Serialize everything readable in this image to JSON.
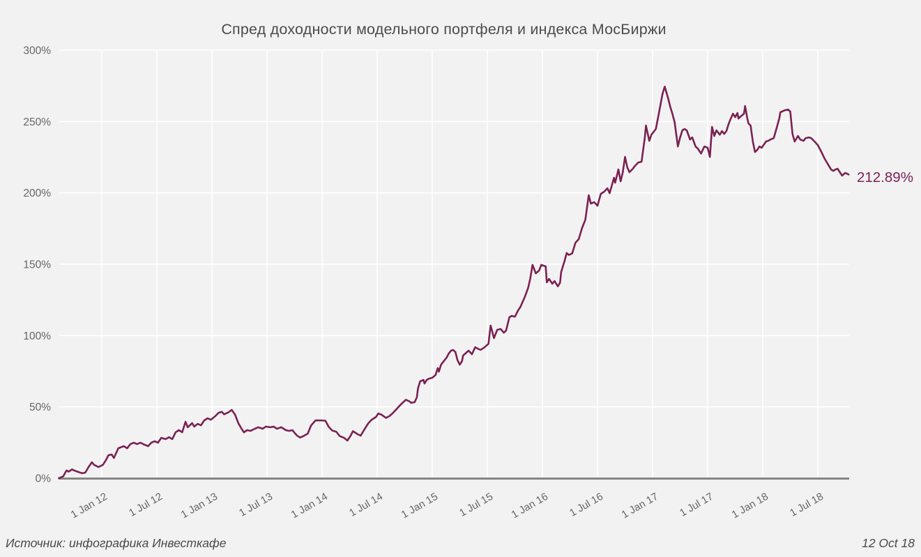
{
  "title": "Спред доходности модельного портфеля и индекса МосБиржи",
  "footer": {
    "source_label": "Источник: инфографика Инвесткафе",
    "date_label": "12 Oct 18"
  },
  "colors": {
    "background": "#f2f2f2",
    "gridline": "#ffffff",
    "axis_line": "#858585",
    "series_line": "#7a2152",
    "end_label": "#7c2253",
    "title_text": "#4c4c4c",
    "tick_text": "#666666",
    "footer_text": "#4a4a4a"
  },
  "chart_data": {
    "type": "line",
    "title": "Спред доходности модельного портфеля и индекса МосБиржи",
    "xlabel": "",
    "ylabel": "",
    "grid": true,
    "legend": "none",
    "x_axis": {
      "unit": "decimal_year",
      "range": [
        2011.61,
        2018.8
      ],
      "label_rotation": -30,
      "ticks": [
        {
          "v": 2012.0,
          "label": "1 Jan 12"
        },
        {
          "v": 2012.5,
          "label": "1 Jul 12"
        },
        {
          "v": 2013.0,
          "label": "1 Jan 13"
        },
        {
          "v": 2013.5,
          "label": "1 Jul 13"
        },
        {
          "v": 2014.0,
          "label": "1 Jan 14"
        },
        {
          "v": 2014.5,
          "label": "1 Jul 14"
        },
        {
          "v": 2015.0,
          "label": "1 Jan 15"
        },
        {
          "v": 2015.5,
          "label": "1 Jul 15"
        },
        {
          "v": 2016.0,
          "label": "1 Jan 16"
        },
        {
          "v": 2016.5,
          "label": "1 Jul 16"
        },
        {
          "v": 2017.0,
          "label": "1 Jan 17"
        },
        {
          "v": 2017.5,
          "label": "1 Jul 17"
        },
        {
          "v": 2018.0,
          "label": "1 Jan 18"
        },
        {
          "v": 2018.5,
          "label": "1 Jul 18"
        }
      ]
    },
    "y_axis": {
      "range": [
        0,
        300
      ],
      "ticks": [
        {
          "v": 0,
          "label": "0%"
        },
        {
          "v": 50,
          "label": "50%"
        },
        {
          "v": 100,
          "label": "100%"
        },
        {
          "v": 150,
          "label": "150%"
        },
        {
          "v": 200,
          "label": "200%"
        },
        {
          "v": 250,
          "label": "250%"
        },
        {
          "v": 300,
          "label": "300%"
        }
      ]
    },
    "series": [
      {
        "name": "Спред доходности",
        "color": "#7a2152",
        "end_label": "212.89%",
        "end_value": 212.89,
        "points": [
          [
            2011.61,
            0
          ],
          [
            2011.65,
            1.3
          ],
          [
            2011.68,
            5.4
          ],
          [
            2011.7,
            4.6
          ],
          [
            2011.73,
            6.2
          ],
          [
            2011.75,
            5.4
          ],
          [
            2011.78,
            4.6
          ],
          [
            2011.82,
            3.5
          ],
          [
            2011.85,
            3.9
          ],
          [
            2011.88,
            7.8
          ],
          [
            2011.91,
            11.2
          ],
          [
            2011.93,
            9.4
          ],
          [
            2011.97,
            7.8
          ],
          [
            2012.01,
            9.4
          ],
          [
            2012.04,
            13
          ],
          [
            2012.06,
            16.1
          ],
          [
            2012.09,
            16.6
          ],
          [
            2012.11,
            14.2
          ],
          [
            2012.15,
            21
          ],
          [
            2012.2,
            22.5
          ],
          [
            2012.23,
            21
          ],
          [
            2012.26,
            23.9
          ],
          [
            2012.29,
            24.9
          ],
          [
            2012.32,
            23.9
          ],
          [
            2012.35,
            24.9
          ],
          [
            2012.39,
            23.4
          ],
          [
            2012.42,
            22.5
          ],
          [
            2012.45,
            24.9
          ],
          [
            2012.48,
            25.9
          ],
          [
            2012.51,
            24.9
          ],
          [
            2012.54,
            28.3
          ],
          [
            2012.58,
            27.4
          ],
          [
            2012.61,
            28.8
          ],
          [
            2012.64,
            27.4
          ],
          [
            2012.67,
            32.2
          ],
          [
            2012.7,
            33.7
          ],
          [
            2012.73,
            32.2
          ],
          [
            2012.76,
            39.6
          ],
          [
            2012.78,
            35.7
          ],
          [
            2012.82,
            38.6
          ],
          [
            2012.84,
            36.2
          ],
          [
            2012.87,
            38.1
          ],
          [
            2012.9,
            37.1
          ],
          [
            2012.93,
            40.5
          ],
          [
            2012.96,
            42
          ],
          [
            2012.99,
            41
          ],
          [
            2013.03,
            43.5
          ],
          [
            2013.06,
            45.9
          ],
          [
            2013.09,
            46.5
          ],
          [
            2013.11,
            44.8
          ],
          [
            2013.15,
            46.2
          ],
          [
            2013.18,
            47.9
          ],
          [
            2013.21,
            44.5
          ],
          [
            2013.24,
            38.5
          ],
          [
            2013.27,
            34.5
          ],
          [
            2013.29,
            32.2
          ],
          [
            2013.32,
            33.7
          ],
          [
            2013.35,
            33.2
          ],
          [
            2013.39,
            34.7
          ],
          [
            2013.42,
            35.7
          ],
          [
            2013.46,
            34.7
          ],
          [
            2013.49,
            36.2
          ],
          [
            2013.53,
            35.7
          ],
          [
            2013.56,
            36.2
          ],
          [
            2013.59,
            34.7
          ],
          [
            2013.63,
            35.7
          ],
          [
            2013.67,
            33.7
          ],
          [
            2013.7,
            33.2
          ],
          [
            2013.73,
            33.7
          ],
          [
            2013.77,
            30
          ],
          [
            2013.8,
            28.5
          ],
          [
            2013.83,
            29.5
          ],
          [
            2013.87,
            31.3
          ],
          [
            2013.9,
            37
          ],
          [
            2013.94,
            40.5
          ],
          [
            2013.99,
            40.5
          ],
          [
            2014.03,
            40.3
          ],
          [
            2014.06,
            36
          ],
          [
            2014.09,
            33.5
          ],
          [
            2014.13,
            32.5
          ],
          [
            2014.16,
            29.5
          ],
          [
            2014.2,
            28.3
          ],
          [
            2014.23,
            26.4
          ],
          [
            2014.26,
            30
          ],
          [
            2014.28,
            33
          ],
          [
            2014.32,
            31
          ],
          [
            2014.35,
            29.8
          ],
          [
            2014.39,
            35
          ],
          [
            2014.42,
            38.6
          ],
          [
            2014.45,
            41
          ],
          [
            2014.49,
            43
          ],
          [
            2014.51,
            45.4
          ],
          [
            2014.54,
            44.5
          ],
          [
            2014.58,
            42.3
          ],
          [
            2014.61,
            43.5
          ],
          [
            2014.64,
            45.5
          ],
          [
            2014.67,
            48
          ],
          [
            2014.7,
            50.5
          ],
          [
            2014.73,
            52.8
          ],
          [
            2014.76,
            55
          ],
          [
            2014.79,
            54
          ],
          [
            2014.81,
            52.8
          ],
          [
            2014.84,
            53.3
          ],
          [
            2014.86,
            56.7
          ],
          [
            2014.87,
            63
          ],
          [
            2014.89,
            67.9
          ],
          [
            2014.92,
            68.9
          ],
          [
            2014.93,
            66.4
          ],
          [
            2014.95,
            68.9
          ],
          [
            2014.97,
            69.8
          ],
          [
            2015.0,
            70.4
          ],
          [
            2015.03,
            72.3
          ],
          [
            2015.05,
            77.2
          ],
          [
            2015.06,
            74.7
          ],
          [
            2015.08,
            79.6
          ],
          [
            2015.11,
            82.6
          ],
          [
            2015.13,
            84.5
          ],
          [
            2015.15,
            87.4
          ],
          [
            2015.17,
            89.4
          ],
          [
            2015.19,
            89.9
          ],
          [
            2015.21,
            88.4
          ],
          [
            2015.23,
            82.6
          ],
          [
            2015.25,
            79.6
          ],
          [
            2015.27,
            82.1
          ],
          [
            2015.28,
            86
          ],
          [
            2015.3,
            87.4
          ],
          [
            2015.33,
            89.4
          ],
          [
            2015.36,
            86.9
          ],
          [
            2015.39,
            91.8
          ],
          [
            2015.42,
            90.5
          ],
          [
            2015.44,
            90
          ],
          [
            2015.47,
            91.5
          ],
          [
            2015.51,
            94.2
          ],
          [
            2015.53,
            107
          ],
          [
            2015.56,
            98.2
          ],
          [
            2015.59,
            104
          ],
          [
            2015.62,
            104.6
          ],
          [
            2015.65,
            102
          ],
          [
            2015.67,
            103.5
          ],
          [
            2015.7,
            112.8
          ],
          [
            2015.72,
            113.8
          ],
          [
            2015.75,
            113.2
          ],
          [
            2015.78,
            117.7
          ],
          [
            2015.8,
            120
          ],
          [
            2015.82,
            123.6
          ],
          [
            2015.84,
            127
          ],
          [
            2015.87,
            133.4
          ],
          [
            2015.89,
            140
          ],
          [
            2015.91,
            149.5
          ],
          [
            2015.94,
            143.6
          ],
          [
            2015.97,
            145.6
          ],
          [
            2015.99,
            149.5
          ],
          [
            2016.03,
            148.5
          ],
          [
            2016.04,
            137.3
          ],
          [
            2016.06,
            139.7
          ],
          [
            2016.09,
            136.3
          ],
          [
            2016.11,
            138.2
          ],
          [
            2016.14,
            134.5
          ],
          [
            2016.16,
            137
          ],
          [
            2016.17,
            144.6
          ],
          [
            2016.2,
            152
          ],
          [
            2016.22,
            157.8
          ],
          [
            2016.24,
            156.5
          ],
          [
            2016.27,
            157.5
          ],
          [
            2016.3,
            165.1
          ],
          [
            2016.33,
            167.6
          ],
          [
            2016.36,
            175.4
          ],
          [
            2016.39,
            181.2
          ],
          [
            2016.42,
            198.3
          ],
          [
            2016.44,
            192.5
          ],
          [
            2016.47,
            193.5
          ],
          [
            2016.5,
            191
          ],
          [
            2016.53,
            199.3
          ],
          [
            2016.56,
            200.8
          ],
          [
            2016.59,
            203.2
          ],
          [
            2016.61,
            199.8
          ],
          [
            2016.65,
            210.6
          ],
          [
            2016.66,
            207.1
          ],
          [
            2016.69,
            216.4
          ],
          [
            2016.71,
            208.1
          ],
          [
            2016.73,
            214.5
          ],
          [
            2016.75,
            225.2
          ],
          [
            2016.77,
            217.9
          ],
          [
            2016.79,
            214.5
          ],
          [
            2016.82,
            216.9
          ],
          [
            2016.84,
            218.9
          ],
          [
            2016.87,
            221.3
          ],
          [
            2016.9,
            221.8
          ],
          [
            2016.93,
            238.9
          ],
          [
            2016.94,
            247.2
          ],
          [
            2016.97,
            236.5
          ],
          [
            2016.99,
            240.8
          ],
          [
            2017.03,
            244.8
          ],
          [
            2017.06,
            257
          ],
          [
            2017.09,
            269.2
          ],
          [
            2017.11,
            274.5
          ],
          [
            2017.14,
            266.7
          ],
          [
            2017.16,
            260.4
          ],
          [
            2017.18,
            255.5
          ],
          [
            2017.2,
            249.6
          ],
          [
            2017.23,
            232.5
          ],
          [
            2017.25,
            238.9
          ],
          [
            2017.27,
            243.8
          ],
          [
            2017.29,
            244.8
          ],
          [
            2017.31,
            243.8
          ],
          [
            2017.34,
            237.4
          ],
          [
            2017.36,
            238.9
          ],
          [
            2017.39,
            232.5
          ],
          [
            2017.41,
            231.1
          ],
          [
            2017.44,
            227.6
          ],
          [
            2017.47,
            232.5
          ],
          [
            2017.5,
            231.6
          ],
          [
            2017.52,
            225.2
          ],
          [
            2017.54,
            246.2
          ],
          [
            2017.56,
            239.9
          ],
          [
            2017.58,
            243.8
          ],
          [
            2017.61,
            240.8
          ],
          [
            2017.63,
            243.3
          ],
          [
            2017.65,
            241.3
          ],
          [
            2017.67,
            243.3
          ],
          [
            2017.69,
            248.2
          ],
          [
            2017.71,
            252.1
          ],
          [
            2017.73,
            255.5
          ],
          [
            2017.75,
            253.1
          ],
          [
            2017.77,
            256
          ],
          [
            2017.78,
            252.1
          ],
          [
            2017.8,
            253.6
          ],
          [
            2017.83,
            255.5
          ],
          [
            2017.84,
            260.9
          ],
          [
            2017.86,
            252.1
          ],
          [
            2017.87,
            248.7
          ],
          [
            2017.89,
            247.2
          ],
          [
            2017.91,
            236
          ],
          [
            2017.93,
            228.6
          ],
          [
            2017.95,
            230.1
          ],
          [
            2017.97,
            232.5
          ],
          [
            2017.99,
            231.6
          ],
          [
            2018.03,
            236
          ],
          [
            2018.05,
            236.5
          ],
          [
            2018.07,
            237.4
          ],
          [
            2018.1,
            238.4
          ],
          [
            2018.12,
            243.8
          ],
          [
            2018.15,
            252.1
          ],
          [
            2018.16,
            256.5
          ],
          [
            2018.2,
            257.9
          ],
          [
            2018.23,
            258.4
          ],
          [
            2018.25,
            257
          ],
          [
            2018.27,
            241.3
          ],
          [
            2018.29,
            236
          ],
          [
            2018.32,
            239.9
          ],
          [
            2018.34,
            237.4
          ],
          [
            2018.37,
            236.5
          ],
          [
            2018.39,
            238.4
          ],
          [
            2018.42,
            238.9
          ],
          [
            2018.44,
            238.4
          ],
          [
            2018.47,
            236
          ],
          [
            2018.5,
            233.5
          ],
          [
            2018.53,
            229.1
          ],
          [
            2018.56,
            224.2
          ],
          [
            2018.59,
            220.3
          ],
          [
            2018.62,
            216.4
          ],
          [
            2018.64,
            215.4
          ],
          [
            2018.66,
            216.4
          ],
          [
            2018.68,
            216.9
          ],
          [
            2018.7,
            214.5
          ],
          [
            2018.72,
            212.1
          ],
          [
            2018.75,
            214
          ],
          [
            2018.78,
            212.89
          ]
        ],
        "annotations": [
          {
            "text": "212.89%",
            "x": 2018.78,
            "y": 212.89
          }
        ]
      }
    ]
  }
}
